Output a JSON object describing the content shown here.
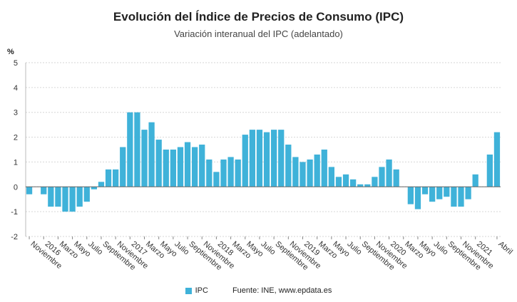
{
  "chart_data": {
    "type": "bar",
    "title": "Evolución del Índice de Precios de Consumo (IPC)",
    "subtitle": "Variación interanual del IPC (adelantado)",
    "ylabel": "%",
    "xlabel": "",
    "ylim": [
      -2,
      5
    ],
    "yticks": [
      "5",
      "4",
      "3",
      "2",
      "1",
      "0",
      "-1",
      "-2"
    ],
    "grid": true,
    "legend_position": "bottom",
    "color": "#3fb2d9",
    "x": [
      "2015-11",
      "2015-12",
      "2016-01",
      "2016-02",
      "2016-03",
      "2016-04",
      "2016-05",
      "2016-06",
      "2016-07",
      "2016-08",
      "2016-09",
      "2016-10",
      "2016-11",
      "2016-12",
      "2017-01",
      "2017-02",
      "2017-03",
      "2017-04",
      "2017-05",
      "2017-06",
      "2017-07",
      "2017-08",
      "2017-09",
      "2017-10",
      "2017-11",
      "2017-12",
      "2018-01",
      "2018-02",
      "2018-03",
      "2018-04",
      "2018-05",
      "2018-06",
      "2018-07",
      "2018-08",
      "2018-09",
      "2018-10",
      "2018-11",
      "2018-12",
      "2019-01",
      "2019-02",
      "2019-03",
      "2019-04",
      "2019-05",
      "2019-06",
      "2019-07",
      "2019-08",
      "2019-09",
      "2019-10",
      "2019-11",
      "2019-12",
      "2020-01",
      "2020-02",
      "2020-03",
      "2020-04",
      "2020-05",
      "2020-06",
      "2020-07",
      "2020-08",
      "2020-09",
      "2020-10",
      "2020-11",
      "2020-12",
      "2021-01",
      "2021-02",
      "2021-03",
      "2021-04"
    ],
    "tick_labels": [
      {
        "x": "2015-11",
        "label": "Noviembre"
      },
      {
        "x": "2016-01",
        "label": "2016"
      },
      {
        "x": "2016-03",
        "label": "Marzo"
      },
      {
        "x": "2016-05",
        "label": "Mayo"
      },
      {
        "x": "2016-07",
        "label": "Julio"
      },
      {
        "x": "2016-09",
        "label": "Septiembre"
      },
      {
        "x": "2016-11",
        "label": "Noviembre"
      },
      {
        "x": "2017-01",
        "label": "2017"
      },
      {
        "x": "2017-03",
        "label": "Marzo"
      },
      {
        "x": "2017-05",
        "label": "Mayo"
      },
      {
        "x": "2017-07",
        "label": "Julio"
      },
      {
        "x": "2017-09",
        "label": "Septiembre"
      },
      {
        "x": "2017-11",
        "label": "Noviembre"
      },
      {
        "x": "2018-01",
        "label": "2018"
      },
      {
        "x": "2018-03",
        "label": "Marzo"
      },
      {
        "x": "2018-05",
        "label": "Mayo"
      },
      {
        "x": "2018-07",
        "label": "Julio"
      },
      {
        "x": "2018-09",
        "label": "Septiembre"
      },
      {
        "x": "2018-11",
        "label": "Noviembre"
      },
      {
        "x": "2019-01",
        "label": "2019"
      },
      {
        "x": "2019-03",
        "label": "Marzo"
      },
      {
        "x": "2019-05",
        "label": "Mayo"
      },
      {
        "x": "2019-07",
        "label": "Julio"
      },
      {
        "x": "2019-09",
        "label": "Septiembre"
      },
      {
        "x": "2019-11",
        "label": "Noviembre"
      },
      {
        "x": "2020-01",
        "label": "2020"
      },
      {
        "x": "2020-03",
        "label": "Marzo"
      },
      {
        "x": "2020-05",
        "label": "Mayo"
      },
      {
        "x": "2020-07",
        "label": "Julio"
      },
      {
        "x": "2020-09",
        "label": "Septiembre"
      },
      {
        "x": "2020-11",
        "label": "Noviembre"
      },
      {
        "x": "2021-01",
        "label": "2021"
      },
      {
        "x": "2021-04",
        "label": "Abril"
      }
    ],
    "series": [
      {
        "name": "IPC",
        "values": [
          -0.3,
          null,
          -0.3,
          -0.8,
          -0.8,
          -1.0,
          -1.0,
          -0.8,
          -0.6,
          -0.1,
          0.2,
          0.7,
          0.7,
          1.6,
          3.0,
          3.0,
          2.3,
          2.6,
          1.9,
          1.5,
          1.5,
          1.6,
          1.8,
          1.6,
          1.7,
          1.1,
          0.6,
          1.1,
          1.2,
          1.1,
          2.1,
          2.3,
          2.3,
          2.2,
          2.3,
          2.3,
          1.7,
          1.2,
          1.0,
          1.1,
          1.3,
          1.5,
          0.8,
          0.4,
          0.5,
          0.3,
          0.1,
          0.1,
          0.4,
          0.8,
          1.1,
          0.7,
          null,
          -0.7,
          -0.9,
          -0.3,
          -0.6,
          -0.5,
          -0.4,
          -0.8,
          -0.8,
          -0.5,
          0.5,
          null,
          1.3,
          2.2
        ]
      }
    ]
  },
  "legend": {
    "series_label": "IPC",
    "source": "Fuente: INE, www.epdata.es"
  }
}
